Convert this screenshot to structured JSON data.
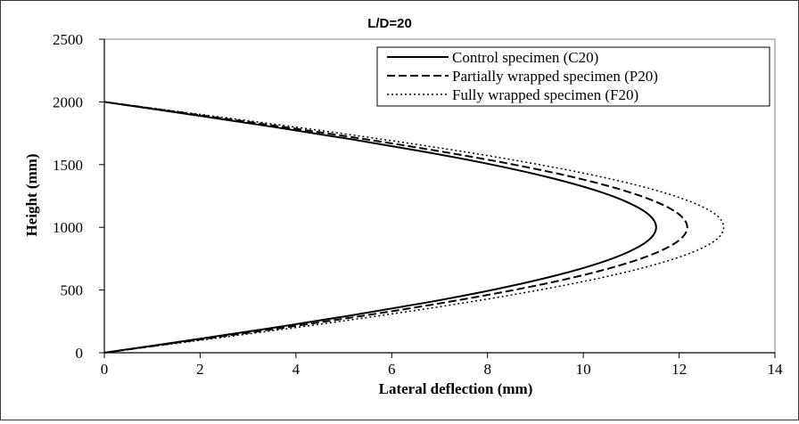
{
  "chart_data": {
    "type": "line",
    "title": "L/D=20",
    "xlabel": "Lateral deflection (mm)",
    "ylabel": "Height (mm)",
    "xlim": [
      0,
      14
    ],
    "ylim": [
      0,
      2500
    ],
    "xticks": [
      0,
      2,
      4,
      6,
      8,
      10,
      12,
      14
    ],
    "yticks": [
      0,
      500,
      1000,
      1500,
      2000,
      2500
    ],
    "grid": false,
    "legend_position": "top-right",
    "series": [
      {
        "name": "Control specimen (C20)",
        "style": "solid",
        "x": [
          0,
          1.79,
          3.54,
          5.19,
          6.72,
          8.09,
          9.26,
          10.21,
          10.92,
          11.37,
          11.52,
          11.37,
          10.92,
          10.21,
          9.26,
          8.09,
          6.72,
          5.19,
          3.54,
          1.79,
          0
        ],
        "y": [
          0,
          100,
          200,
          300,
          400,
          500,
          600,
          700,
          800,
          900,
          1000,
          1100,
          1200,
          1300,
          1400,
          1500,
          1600,
          1700,
          1800,
          1900,
          2000
        ]
      },
      {
        "name": "Partially wrapped specimen (P20)",
        "style": "dashed",
        "x": [
          0,
          1.89,
          3.74,
          5.49,
          7.1,
          8.55,
          9.79,
          10.79,
          11.54,
          12.01,
          12.17,
          12.01,
          11.54,
          10.79,
          9.79,
          8.55,
          7.1,
          5.49,
          3.74,
          1.89,
          0
        ],
        "y": [
          0,
          100,
          200,
          300,
          400,
          500,
          600,
          700,
          800,
          900,
          1000,
          1100,
          1200,
          1300,
          1400,
          1500,
          1600,
          1700,
          1800,
          1900,
          2000
        ]
      },
      {
        "name": "Fully wrapped specimen (F20)",
        "style": "dotted",
        "x": [
          0,
          2.01,
          3.98,
          5.83,
          7.55,
          9.08,
          10.4,
          11.47,
          12.27,
          12.77,
          12.93,
          12.77,
          12.27,
          11.47,
          10.4,
          9.08,
          7.55,
          5.83,
          3.98,
          2.01,
          0
        ],
        "y": [
          0,
          100,
          200,
          300,
          400,
          500,
          600,
          700,
          800,
          900,
          1000,
          1100,
          1200,
          1300,
          1400,
          1500,
          1600,
          1700,
          1800,
          1900,
          2000
        ]
      }
    ]
  }
}
